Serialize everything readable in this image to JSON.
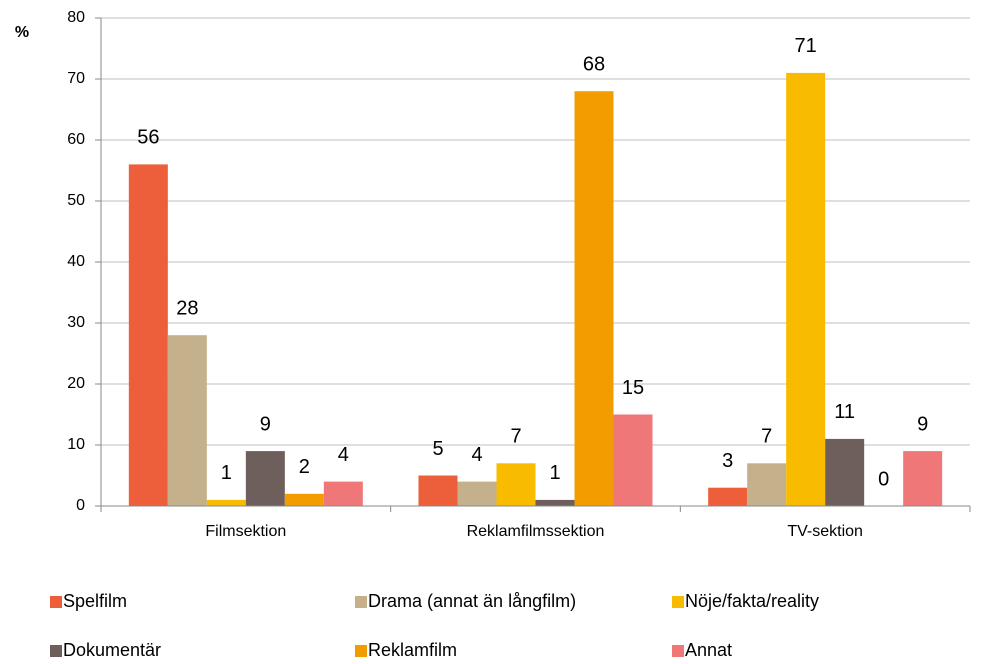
{
  "chart_data": {
    "type": "bar",
    "y_label": "%",
    "categories": [
      "Filmsektion",
      "Reklamfilmssektion",
      "TV-sektion"
    ],
    "series": [
      {
        "name": "Spelfilm",
        "color": "#ec5f3a",
        "values": [
          56,
          5,
          3
        ]
      },
      {
        "name": "Drama (annat än långfilm)",
        "color": "#c4b08a",
        "values": [
          28,
          4,
          7
        ]
      },
      {
        "name": "Nöje/fakta/reality",
        "color": "#f9bb00",
        "values": [
          1,
          7,
          71
        ]
      },
      {
        "name": "Dokumentär",
        "color": "#6f5f5c",
        "values": [
          9,
          1,
          11
        ]
      },
      {
        "name": "Reklamfilm",
        "color": "#f39c00",
        "values": [
          2,
          68,
          0
        ]
      },
      {
        "name": "Annat",
        "color": "#f07778",
        "values": [
          4,
          15,
          9
        ]
      }
    ],
    "ylim": [
      0,
      80
    ],
    "yticks": [
      0,
      10,
      20,
      30,
      40,
      50,
      60,
      70,
      80
    ],
    "grid": true
  }
}
